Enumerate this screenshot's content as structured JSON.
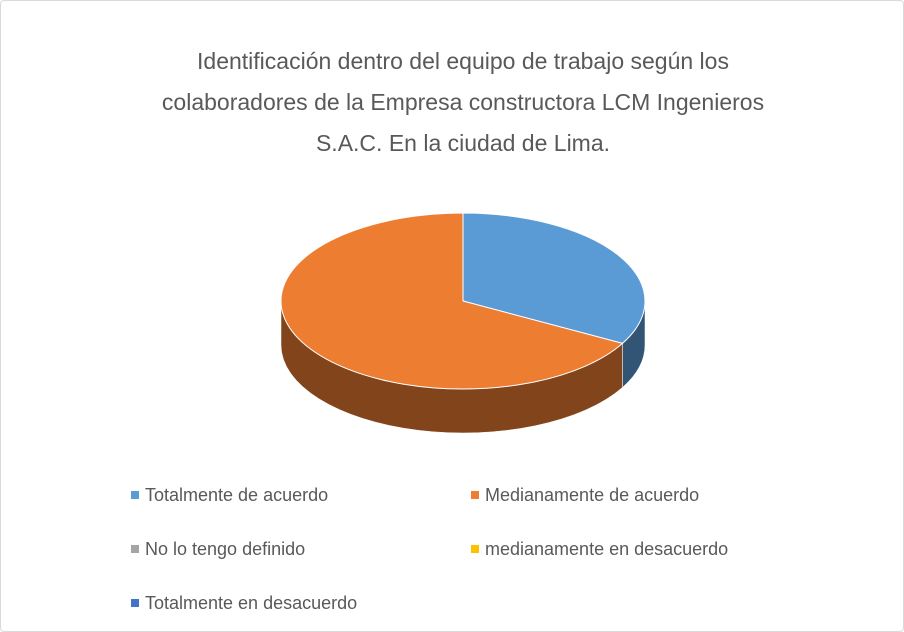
{
  "chart_data": {
    "type": "pie3d",
    "title": "Identificación dentro del equipo de trabajo según los colaboradores de la Empresa constructora LCM Ingenieros S.A.C. En la ciudad de Lima.",
    "categories": [
      "Totalmente de acuerdo",
      "Medianamente de acuerdo",
      "No lo tengo definido",
      "medianamente en desacuerdo",
      "Totalmente en desacuerdo"
    ],
    "values": [
      33,
      67,
      0,
      0,
      0
    ],
    "colors": [
      "#5b9bd5",
      "#ed7d31",
      "#a5a5a5",
      "#ffc000",
      "#4472c4"
    ],
    "legend": "bottom"
  }
}
